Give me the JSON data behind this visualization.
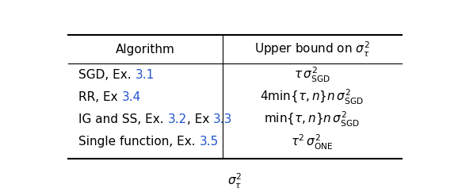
{
  "col1_header": "Algorithm",
  "col2_header": "Upper bound on $\\sigma_{\\tau}^2$",
  "rows": [
    {
      "col1_text": [
        "SGD, Ex. ",
        "3.1"
      ],
      "col1_colors": [
        "black",
        "#2255cc"
      ],
      "col2_math": "$\\tau\\, \\sigma_{\\mathrm{SGD}}^2$"
    },
    {
      "col1_text": [
        "RR, Ex ",
        "3.4"
      ],
      "col1_colors": [
        "black",
        "#2255cc"
      ],
      "col2_math": "$4\\min\\{\\tau, n\\}n\\, \\sigma_{\\mathrm{SGD}}^2$"
    },
    {
      "col1_text": [
        "IG and SS, Ex. ",
        "3.2",
        ", Ex ",
        "3.3"
      ],
      "col1_colors": [
        "black",
        "#2255cc",
        "black",
        "#2255cc"
      ],
      "col2_math": "$\\min\\{\\tau, n\\}n\\, \\sigma_{\\mathrm{SGD}}^2$"
    },
    {
      "col1_text": [
        "Single function, Ex. ",
        "3.5"
      ],
      "col1_colors": [
        "black",
        "#2255cc"
      ],
      "col2_math": "$\\tau^2\\, \\sigma_{\\mathrm{ONE}}^2$"
    }
  ],
  "fig_width": 5.78,
  "fig_height": 2.42,
  "dpi": 100,
  "bg_color": "#ffffff",
  "font_size": 11
}
